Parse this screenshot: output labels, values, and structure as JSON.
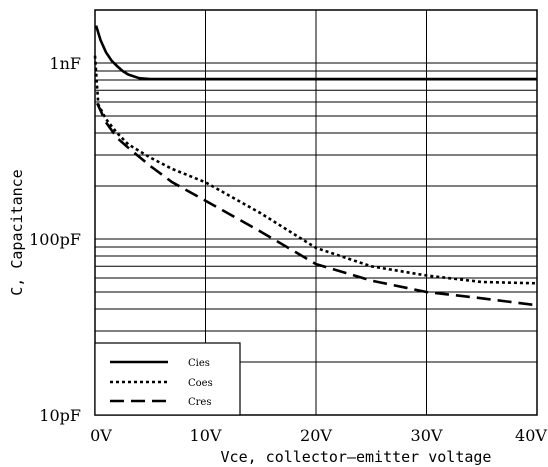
{
  "chart_data": {
    "type": "line",
    "xlabel": "Vce, collector—emitter voltage",
    "ylabel": "C, Capacitance",
    "xlim": [
      0,
      40
    ],
    "ylim": [
      10,
      2000
    ],
    "y_scale": "log",
    "grid": true,
    "legend_position": "bottom-left",
    "x_ticks": [
      {
        "value": 0,
        "label": "0V"
      },
      {
        "value": 10,
        "label": "10V"
      },
      {
        "value": 20,
        "label": "20V"
      },
      {
        "value": 30,
        "label": "30V"
      },
      {
        "value": 40,
        "label": "40V"
      }
    ],
    "y_ticks": [
      {
        "value": 10,
        "label": "10pF"
      },
      {
        "value": 100,
        "label": "100pF"
      },
      {
        "value": 1000,
        "label": "1nF"
      }
    ],
    "series": [
      {
        "name": "Cies",
        "style": "solid",
        "x": [
          0.1,
          0.5,
          1,
          1.5,
          2,
          2.5,
          3,
          4,
          5,
          10,
          20,
          30,
          40
        ],
        "y": [
          1630,
          1350,
          1150,
          1030,
          960,
          900,
          860,
          820,
          810,
          810,
          810,
          810,
          810
        ]
      },
      {
        "name": "Coes",
        "style": "dotted",
        "x": [
          0,
          0.3,
          1,
          2,
          3,
          5,
          7,
          10,
          15,
          20,
          25,
          30,
          35,
          40
        ],
        "y": [
          1100,
          580,
          480,
          400,
          345,
          290,
          250,
          210,
          140,
          89,
          70,
          62,
          57,
          56
        ]
      },
      {
        "name": "Cres",
        "style": "dashed",
        "x": [
          0.2,
          1,
          2,
          3,
          5,
          7,
          10,
          15,
          20,
          25,
          30,
          35,
          40
        ],
        "y": [
          590,
          460,
          375,
          330,
          260,
          210,
          165,
          110,
          72,
          58,
          50,
          46,
          42
        ]
      }
    ]
  }
}
